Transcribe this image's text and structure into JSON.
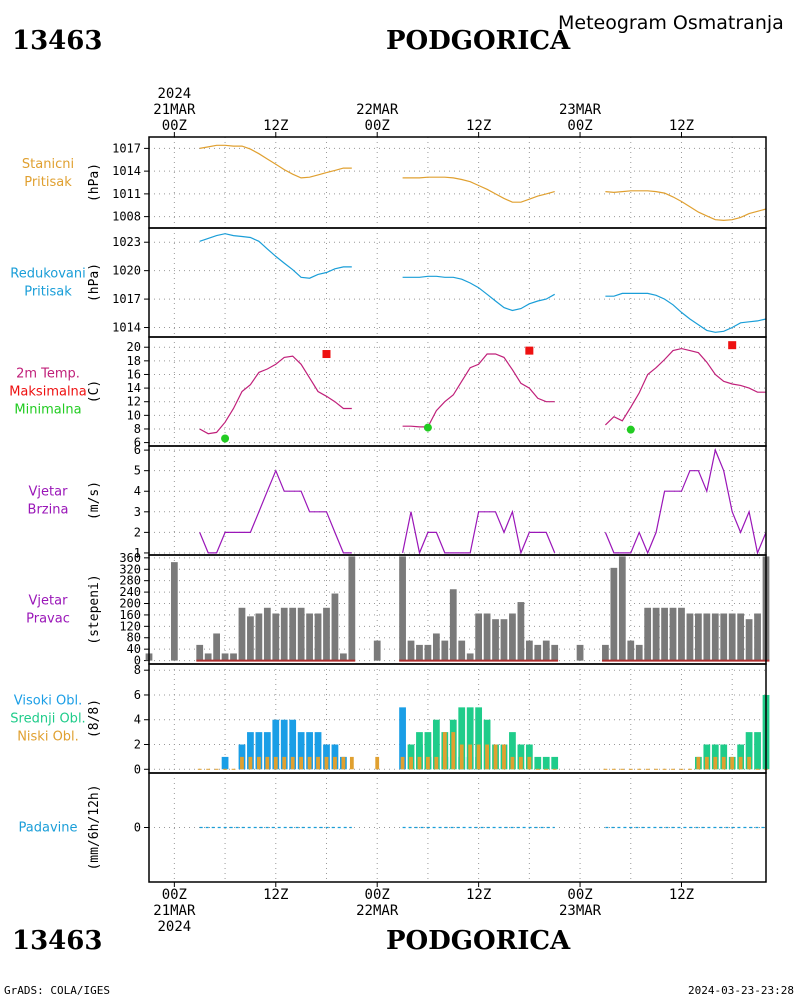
{
  "header": {
    "station_id": "13463",
    "city": "PODGORICA",
    "product": "Meteogram Osmatranja"
  },
  "footer": {
    "credit": "GrADS: COLA/IGES",
    "timestamp": "2024-03-23-23:28"
  },
  "time_axis": {
    "top": [
      {
        "lines": [
          "2024",
          "21MAR",
          "00Z"
        ],
        "hour": 0
      },
      {
        "lines": [
          "12Z"
        ],
        "hour": 12
      },
      {
        "lines": [
          "22MAR",
          "00Z"
        ],
        "hour": 24
      },
      {
        "lines": [
          "12Z"
        ],
        "hour": 36
      },
      {
        "lines": [
          "23MAR",
          "00Z"
        ],
        "hour": 48
      },
      {
        "lines": [
          "12Z"
        ],
        "hour": 60
      }
    ],
    "bottom": [
      {
        "lines": [
          "00Z",
          "21MAR",
          "2024"
        ],
        "hour": 0
      },
      {
        "lines": [
          "12Z"
        ],
        "hour": 12
      },
      {
        "lines": [
          "00Z",
          "22MAR"
        ],
        "hour": 24
      },
      {
        "lines": [
          "12Z"
        ],
        "hour": 36
      },
      {
        "lines": [
          "00Z",
          "23MAR"
        ],
        "hour": 48
      },
      {
        "lines": [
          "12Z"
        ],
        "hour": 60
      }
    ],
    "range_hours": [
      -3,
      70
    ]
  },
  "colors": {
    "pressure": "#e0a030",
    "reduced": "#1a9ed8",
    "temp": "#c0207a",
    "max": "#ee1111",
    "min": "#22cc22",
    "wind": "#9a16b8",
    "dir_bar": "#7a7a7a",
    "dir_base": "#b03030",
    "high_cloud": "#1a9ee6",
    "mid_cloud": "#1fcc8a",
    "low_cloud": "#e0a030",
    "precip": "#1a9ed8"
  },
  "chart_data": [
    {
      "type": "line",
      "panel": "station_pressure",
      "labels": [
        "Stanicni",
        "Pritisak"
      ],
      "unit": "(hPa)",
      "yticks": [
        1008,
        1011,
        1014,
        1017
      ],
      "ylim": [
        1006.5,
        1018.5
      ],
      "series": [
        {
          "x": [
            3,
            4,
            5,
            6,
            7,
            8,
            9,
            10,
            11,
            12,
            13,
            14,
            15,
            16,
            17,
            18,
            19,
            20,
            21
          ],
          "y": [
            1017.0,
            1017.2,
            1017.4,
            1017.4,
            1017.3,
            1017.3,
            1016.9,
            1016.3,
            1015.6,
            1014.9,
            1014.2,
            1013.6,
            1013.1,
            1013.2,
            1013.5,
            1013.8,
            1014.1,
            1014.4,
            1014.4
          ]
        },
        {
          "x": [
            27,
            28,
            29,
            30,
            31,
            32,
            33,
            34,
            35,
            36,
            37,
            38,
            39,
            40,
            41,
            42,
            43,
            44,
            45
          ],
          "y": [
            1013.1,
            1013.1,
            1013.1,
            1013.2,
            1013.2,
            1013.2,
            1013.1,
            1012.9,
            1012.6,
            1012.1,
            1011.6,
            1011.0,
            1010.4,
            1009.9,
            1009.9,
            1010.3,
            1010.7,
            1011.0,
            1011.3
          ]
        },
        {
          "x": [
            51,
            52,
            53,
            54,
            55,
            56,
            57,
            58,
            59,
            60,
            61,
            62,
            63,
            64,
            65,
            66,
            67,
            68,
            69,
            70
          ],
          "y": [
            1011.3,
            1011.2,
            1011.3,
            1011.4,
            1011.4,
            1011.4,
            1011.3,
            1011.1,
            1010.6,
            1010.0,
            1009.3,
            1008.6,
            1008.1,
            1007.6,
            1007.5,
            1007.6,
            1007.9,
            1008.4,
            1008.7,
            1009.0
          ]
        }
      ]
    },
    {
      "type": "line",
      "panel": "reduced_pressure",
      "labels": [
        "Redukovani",
        "Pritisak"
      ],
      "unit": "(hPa)",
      "yticks": [
        1014,
        1017,
        1020,
        1023
      ],
      "ylim": [
        1013,
        1024.5
      ],
      "series": [
        {
          "x": [
            3,
            4,
            5,
            6,
            7,
            8,
            9,
            10,
            11,
            12,
            13,
            14,
            15,
            16,
            17,
            18,
            19,
            20,
            21
          ],
          "y": [
            1023.1,
            1023.4,
            1023.7,
            1023.9,
            1023.7,
            1023.6,
            1023.5,
            1023.1,
            1022.3,
            1021.5,
            1020.8,
            1020.1,
            1019.3,
            1019.2,
            1019.6,
            1019.8,
            1020.2,
            1020.4,
            1020.4
          ]
        },
        {
          "x": [
            27,
            28,
            29,
            30,
            31,
            32,
            33,
            34,
            35,
            36,
            37,
            38,
            39,
            40,
            41,
            42,
            43,
            44,
            45
          ],
          "y": [
            1019.3,
            1019.3,
            1019.3,
            1019.4,
            1019.4,
            1019.3,
            1019.3,
            1019.1,
            1018.7,
            1018.2,
            1017.5,
            1016.8,
            1016.1,
            1015.8,
            1016.0,
            1016.5,
            1016.8,
            1017.0,
            1017.5
          ]
        },
        {
          "x": [
            51,
            52,
            53,
            54,
            55,
            56,
            57,
            58,
            59,
            60,
            61,
            62,
            63,
            64,
            65,
            66,
            67,
            68,
            69,
            70
          ],
          "y": [
            1017.3,
            1017.3,
            1017.6,
            1017.6,
            1017.6,
            1017.6,
            1017.4,
            1017.0,
            1016.4,
            1015.6,
            1014.9,
            1014.3,
            1013.7,
            1013.5,
            1013.6,
            1014.0,
            1014.5,
            1014.6,
            1014.7,
            1014.9
          ]
        }
      ]
    },
    {
      "type": "line",
      "panel": "temperature",
      "labels": [
        "2m Temp.",
        "Maksimalna",
        "Minimalna"
      ],
      "unit": "(C)",
      "yticks": [
        6,
        8,
        10,
        12,
        14,
        16,
        18,
        20
      ],
      "ylim": [
        5.5,
        21.5
      ],
      "series": [
        {
          "x": [
            3,
            4,
            5,
            6,
            7,
            8,
            9,
            10,
            11,
            12,
            13,
            14,
            15,
            16,
            17,
            18,
            19,
            20,
            21
          ],
          "y": [
            8.0,
            7.3,
            7.5,
            9.0,
            11.0,
            13.5,
            14.5,
            16.3,
            16.8,
            17.5,
            18.5,
            18.7,
            17.5,
            15.5,
            13.5,
            12.8,
            12.0,
            11.0,
            11.0
          ]
        },
        {
          "x": [
            27,
            28,
            29,
            30,
            31,
            32,
            33,
            34,
            35,
            36,
            37,
            38,
            39,
            40,
            41,
            42,
            43,
            44,
            45
          ],
          "y": [
            8.4,
            8.4,
            8.3,
            8.3,
            10.7,
            12.0,
            13.0,
            15.0,
            17.0,
            17.5,
            19.0,
            19.0,
            18.5,
            16.7,
            14.7,
            14.0,
            12.5,
            12.0,
            12.0
          ]
        },
        {
          "x": [
            51,
            52,
            53,
            54,
            55,
            56,
            57,
            58,
            59,
            60,
            61,
            62,
            63,
            64,
            65,
            66,
            67,
            68,
            69,
            70
          ],
          "y": [
            8.6,
            9.8,
            9.2,
            11.2,
            13.3,
            16.0,
            17.0,
            18.2,
            19.5,
            19.8,
            19.5,
            19.2,
            17.8,
            16.0,
            15.0,
            14.6,
            14.4,
            14.0,
            13.4,
            13.4
          ]
        }
      ],
      "max_points": [
        {
          "x": 18,
          "y": 19.0
        },
        {
          "x": 42,
          "y": 19.5
        },
        {
          "x": 66,
          "y": 20.3
        }
      ],
      "min_points": [
        {
          "x": 6,
          "y": 6.6
        },
        {
          "x": 30,
          "y": 8.2
        },
        {
          "x": 54,
          "y": 7.9
        }
      ]
    },
    {
      "type": "line",
      "panel": "wind_speed",
      "labels": [
        "Vjetar",
        "Brzina"
      ],
      "unit": "(m/s)",
      "yticks": [
        1,
        2,
        3,
        4,
        5,
        6
      ],
      "ylim": [
        0.9,
        6.2
      ],
      "series": [
        {
          "x": [
            3,
            4,
            5,
            6,
            7,
            8,
            9,
            10,
            11,
            12,
            13,
            14,
            15,
            16,
            17,
            18,
            19,
            20,
            21
          ],
          "y": [
            2,
            1,
            1,
            2,
            2,
            2,
            2,
            3,
            4,
            5,
            4,
            4,
            4,
            3,
            3,
            3,
            2,
            1,
            1
          ]
        },
        {
          "x": [
            27,
            28,
            29,
            30,
            31,
            32,
            33,
            34,
            35,
            36,
            37,
            38,
            39,
            40,
            41,
            42,
            43,
            44,
            45
          ],
          "y": [
            1,
            3,
            1,
            2,
            2,
            1,
            1,
            1,
            1,
            3,
            3,
            3,
            2,
            3,
            1,
            2,
            2,
            2,
            1
          ]
        },
        {
          "x": [
            51,
            52,
            53,
            54,
            55,
            56,
            57,
            58,
            59,
            60,
            61,
            62,
            63,
            64,
            65,
            66,
            67,
            68,
            69,
            70
          ],
          "y": [
            2,
            1,
            1,
            1,
            2,
            1,
            2,
            4,
            4,
            4,
            5,
            5,
            4,
            6,
            5,
            3,
            2,
            3,
            1,
            2
          ]
        }
      ]
    },
    {
      "type": "bar",
      "panel": "wind_direction",
      "labels": [
        "Vjetar",
        "Pravac"
      ],
      "unit": "(stepeni)",
      "yticks": [
        0,
        40,
        80,
        120,
        160,
        200,
        240,
        280,
        320,
        360
      ],
      "ylim": [
        -12,
        370
      ],
      "series": [
        {
          "x": [
            -3,
            0,
            3,
            4,
            5,
            6,
            7,
            8,
            9,
            10,
            11,
            12,
            13,
            14,
            15,
            16,
            17,
            18,
            19,
            20,
            21,
            24,
            27,
            28,
            29,
            30,
            31,
            32,
            33,
            34,
            35,
            36,
            37,
            38,
            39,
            40,
            41,
            42,
            43,
            44,
            45,
            48,
            51,
            52,
            53,
            54,
            55,
            56,
            57,
            58,
            59,
            60,
            61,
            62,
            63,
            64,
            65,
            66,
            67,
            68,
            69,
            70
          ],
          "y": [
            25,
            345,
            55,
            25,
            95,
            25,
            25,
            185,
            155,
            165,
            185,
            165,
            185,
            185,
            185,
            165,
            165,
            185,
            235,
            25,
            365,
            70,
            365,
            70,
            55,
            55,
            95,
            70,
            250,
            70,
            25,
            165,
            165,
            145,
            145,
            165,
            205,
            70,
            55,
            70,
            55,
            55,
            55,
            325,
            365,
            70,
            55,
            185,
            185,
            185,
            185,
            185,
            165,
            165,
            165,
            165,
            165,
            165,
            165,
            145,
            165,
            365
          ]
        }
      ]
    },
    {
      "type": "bar",
      "panel": "clouds",
      "labels": [
        "Visoki Obl.",
        "Srednji Obl.",
        "Niski Obl."
      ],
      "unit": "(8/8)",
      "yticks": [
        0,
        2,
        4,
        6,
        8
      ],
      "ylim": [
        -0.3,
        8.5
      ],
      "series": [
        {
          "name": "Visoki Obl.",
          "x": [
            6,
            8,
            9,
            10,
            11,
            12,
            13,
            14,
            15,
            16,
            17,
            18,
            19,
            20,
            27,
            29,
            30,
            32,
            34,
            35,
            36
          ],
          "y": [
            1,
            2,
            3,
            3,
            3,
            4,
            4,
            4,
            3,
            3,
            3,
            2,
            2,
            1,
            5,
            2,
            1,
            1,
            1,
            1,
            1
          ]
        },
        {
          "name": "Srednji Obl.",
          "x": [
            28,
            29,
            30,
            31,
            32,
            33,
            34,
            35,
            36,
            37,
            38,
            39,
            40,
            41,
            42,
            43,
            44,
            45,
            62,
            63,
            64,
            65,
            66,
            67,
            68,
            69,
            70
          ],
          "y": [
            2,
            3,
            3,
            4,
            3,
            4,
            5,
            5,
            5,
            4,
            2,
            2,
            3,
            2,
            2,
            1,
            1,
            1,
            1,
            2,
            2,
            2,
            1,
            2,
            3,
            3,
            6
          ]
        },
        {
          "name": "Niski Obl.",
          "x": [
            3,
            4,
            5,
            6,
            7,
            8,
            9,
            10,
            11,
            12,
            13,
            14,
            15,
            16,
            17,
            18,
            19,
            20,
            21,
            24,
            27,
            28,
            29,
            30,
            31,
            32,
            33,
            34,
            35,
            36,
            37,
            38,
            39,
            40,
            41,
            42,
            43,
            44,
            45,
            51,
            52,
            53,
            54,
            55,
            56,
            57,
            58,
            59,
            60,
            61,
            62,
            63,
            64,
            65,
            66,
            67,
            68,
            69,
            70
          ],
          "y": [
            0,
            0,
            0,
            0,
            0,
            1,
            1,
            1,
            1,
            1,
            1,
            1,
            1,
            1,
            1,
            1,
            1,
            1,
            1,
            1,
            1,
            1,
            1,
            1,
            1,
            3,
            3,
            2,
            2,
            2,
            2,
            2,
            2,
            1,
            1,
            1,
            0,
            0,
            0,
            0,
            0,
            0,
            0,
            0,
            0,
            0,
            0,
            0,
            0,
            0,
            1,
            1,
            1,
            1,
            1,
            1,
            1,
            0,
            0
          ]
        }
      ]
    },
    {
      "type": "line",
      "panel": "precipitation",
      "labels": [
        "Padavine"
      ],
      "unit": "(mm/6h/12h)",
      "yticks": [
        0
      ],
      "ylim": [
        -4,
        4
      ],
      "series": [
        {
          "x": [
            3,
            21
          ],
          "y": [
            0,
            0
          ]
        },
        {
          "x": [
            27,
            45
          ],
          "y": [
            0,
            0
          ]
        },
        {
          "x": [
            51,
            70
          ],
          "y": [
            0,
            0
          ]
        }
      ]
    }
  ]
}
